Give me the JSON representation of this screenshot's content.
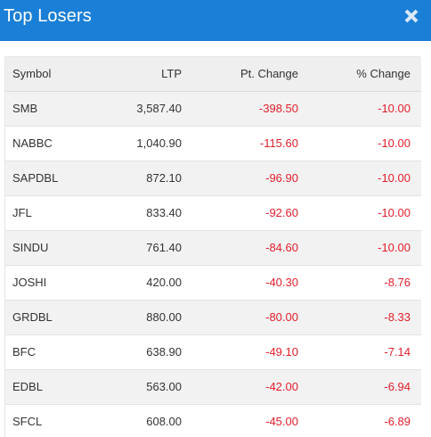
{
  "modal": {
    "title": "Top Losers",
    "close_icon": "close-icon"
  },
  "colors": {
    "header_bg": "#1a7fd6",
    "negative": "#e41e2a"
  },
  "table": {
    "columns": {
      "symbol": "Symbol",
      "ltp": "LTP",
      "pt_change": "Pt. Change",
      "pct_change": "% Change"
    },
    "rows": [
      {
        "symbol": "SMB",
        "ltp": "3,587.40",
        "pt_change": "-398.50",
        "pct_change": "-10.00"
      },
      {
        "symbol": "NABBC",
        "ltp": "1,040.90",
        "pt_change": "-115.60",
        "pct_change": "-10.00"
      },
      {
        "symbol": "SAPDBL",
        "ltp": "872.10",
        "pt_change": "-96.90",
        "pct_change": "-10.00"
      },
      {
        "symbol": "JFL",
        "ltp": "833.40",
        "pt_change": "-92.60",
        "pct_change": "-10.00"
      },
      {
        "symbol": "SINDU",
        "ltp": "761.40",
        "pt_change": "-84.60",
        "pct_change": "-10.00"
      },
      {
        "symbol": "JOSHI",
        "ltp": "420.00",
        "pt_change": "-40.30",
        "pct_change": "-8.76"
      },
      {
        "symbol": "GRDBL",
        "ltp": "880.00",
        "pt_change": "-80.00",
        "pct_change": "-8.33"
      },
      {
        "symbol": "BFC",
        "ltp": "638.90",
        "pt_change": "-49.10",
        "pct_change": "-7.14"
      },
      {
        "symbol": "EDBL",
        "ltp": "563.00",
        "pt_change": "-42.00",
        "pct_change": "-6.94"
      },
      {
        "symbol": "SFCL",
        "ltp": "608.00",
        "pt_change": "-45.00",
        "pct_change": "-6.89"
      }
    ]
  }
}
